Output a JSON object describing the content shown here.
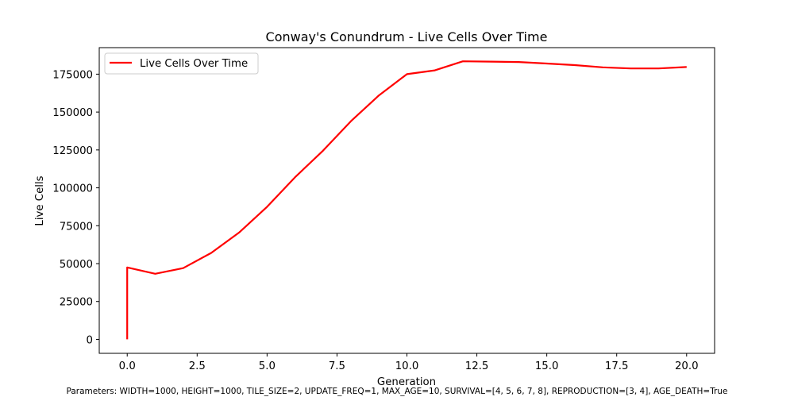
{
  "chart_data": {
    "type": "line",
    "title": "Conway's Conundrum - Live Cells Over Time",
    "xlabel": "Generation",
    "ylabel": "Live Cells",
    "xlim": [
      -1.0,
      21.0
    ],
    "ylim": [
      -9200,
      192500
    ],
    "xticks": [
      0.0,
      2.5,
      5.0,
      7.5,
      10.0,
      12.5,
      15.0,
      17.5,
      20.0
    ],
    "xtick_labels": [
      "0.0",
      "2.5",
      "5.0",
      "7.5",
      "10.0",
      "12.5",
      "15.0",
      "17.5",
      "20.0"
    ],
    "yticks": [
      0,
      25000,
      50000,
      75000,
      100000,
      125000,
      150000,
      175000
    ],
    "ytick_labels": [
      "0",
      "25000",
      "50000",
      "75000",
      "100000",
      "125000",
      "150000",
      "175000"
    ],
    "grid": false,
    "legend_position": "upper-left",
    "series": [
      {
        "name": "Live Cells Over Time",
        "color": "#ff0000",
        "x": [
          0,
          0,
          1,
          2,
          3,
          4,
          5,
          6,
          7,
          8,
          9,
          10,
          11,
          12,
          13,
          14,
          15,
          16,
          17,
          18,
          19,
          20
        ],
        "y": [
          0,
          47500,
          43300,
          47000,
          57000,
          70500,
          87500,
          107000,
          124500,
          144000,
          161000,
          175000,
          177500,
          183500,
          183300,
          183000,
          182000,
          181000,
          179500,
          178800,
          178800,
          179700
        ]
      }
    ]
  },
  "footer_text": "Parameters: WIDTH=1000, HEIGHT=1000, TILE_SIZE=2, UPDATE_FREQ=1, MAX_AGE=10, SURVIVAL=[4, 5, 6, 7, 8], REPRODUCTION=[3, 4], AGE_DEATH=True"
}
